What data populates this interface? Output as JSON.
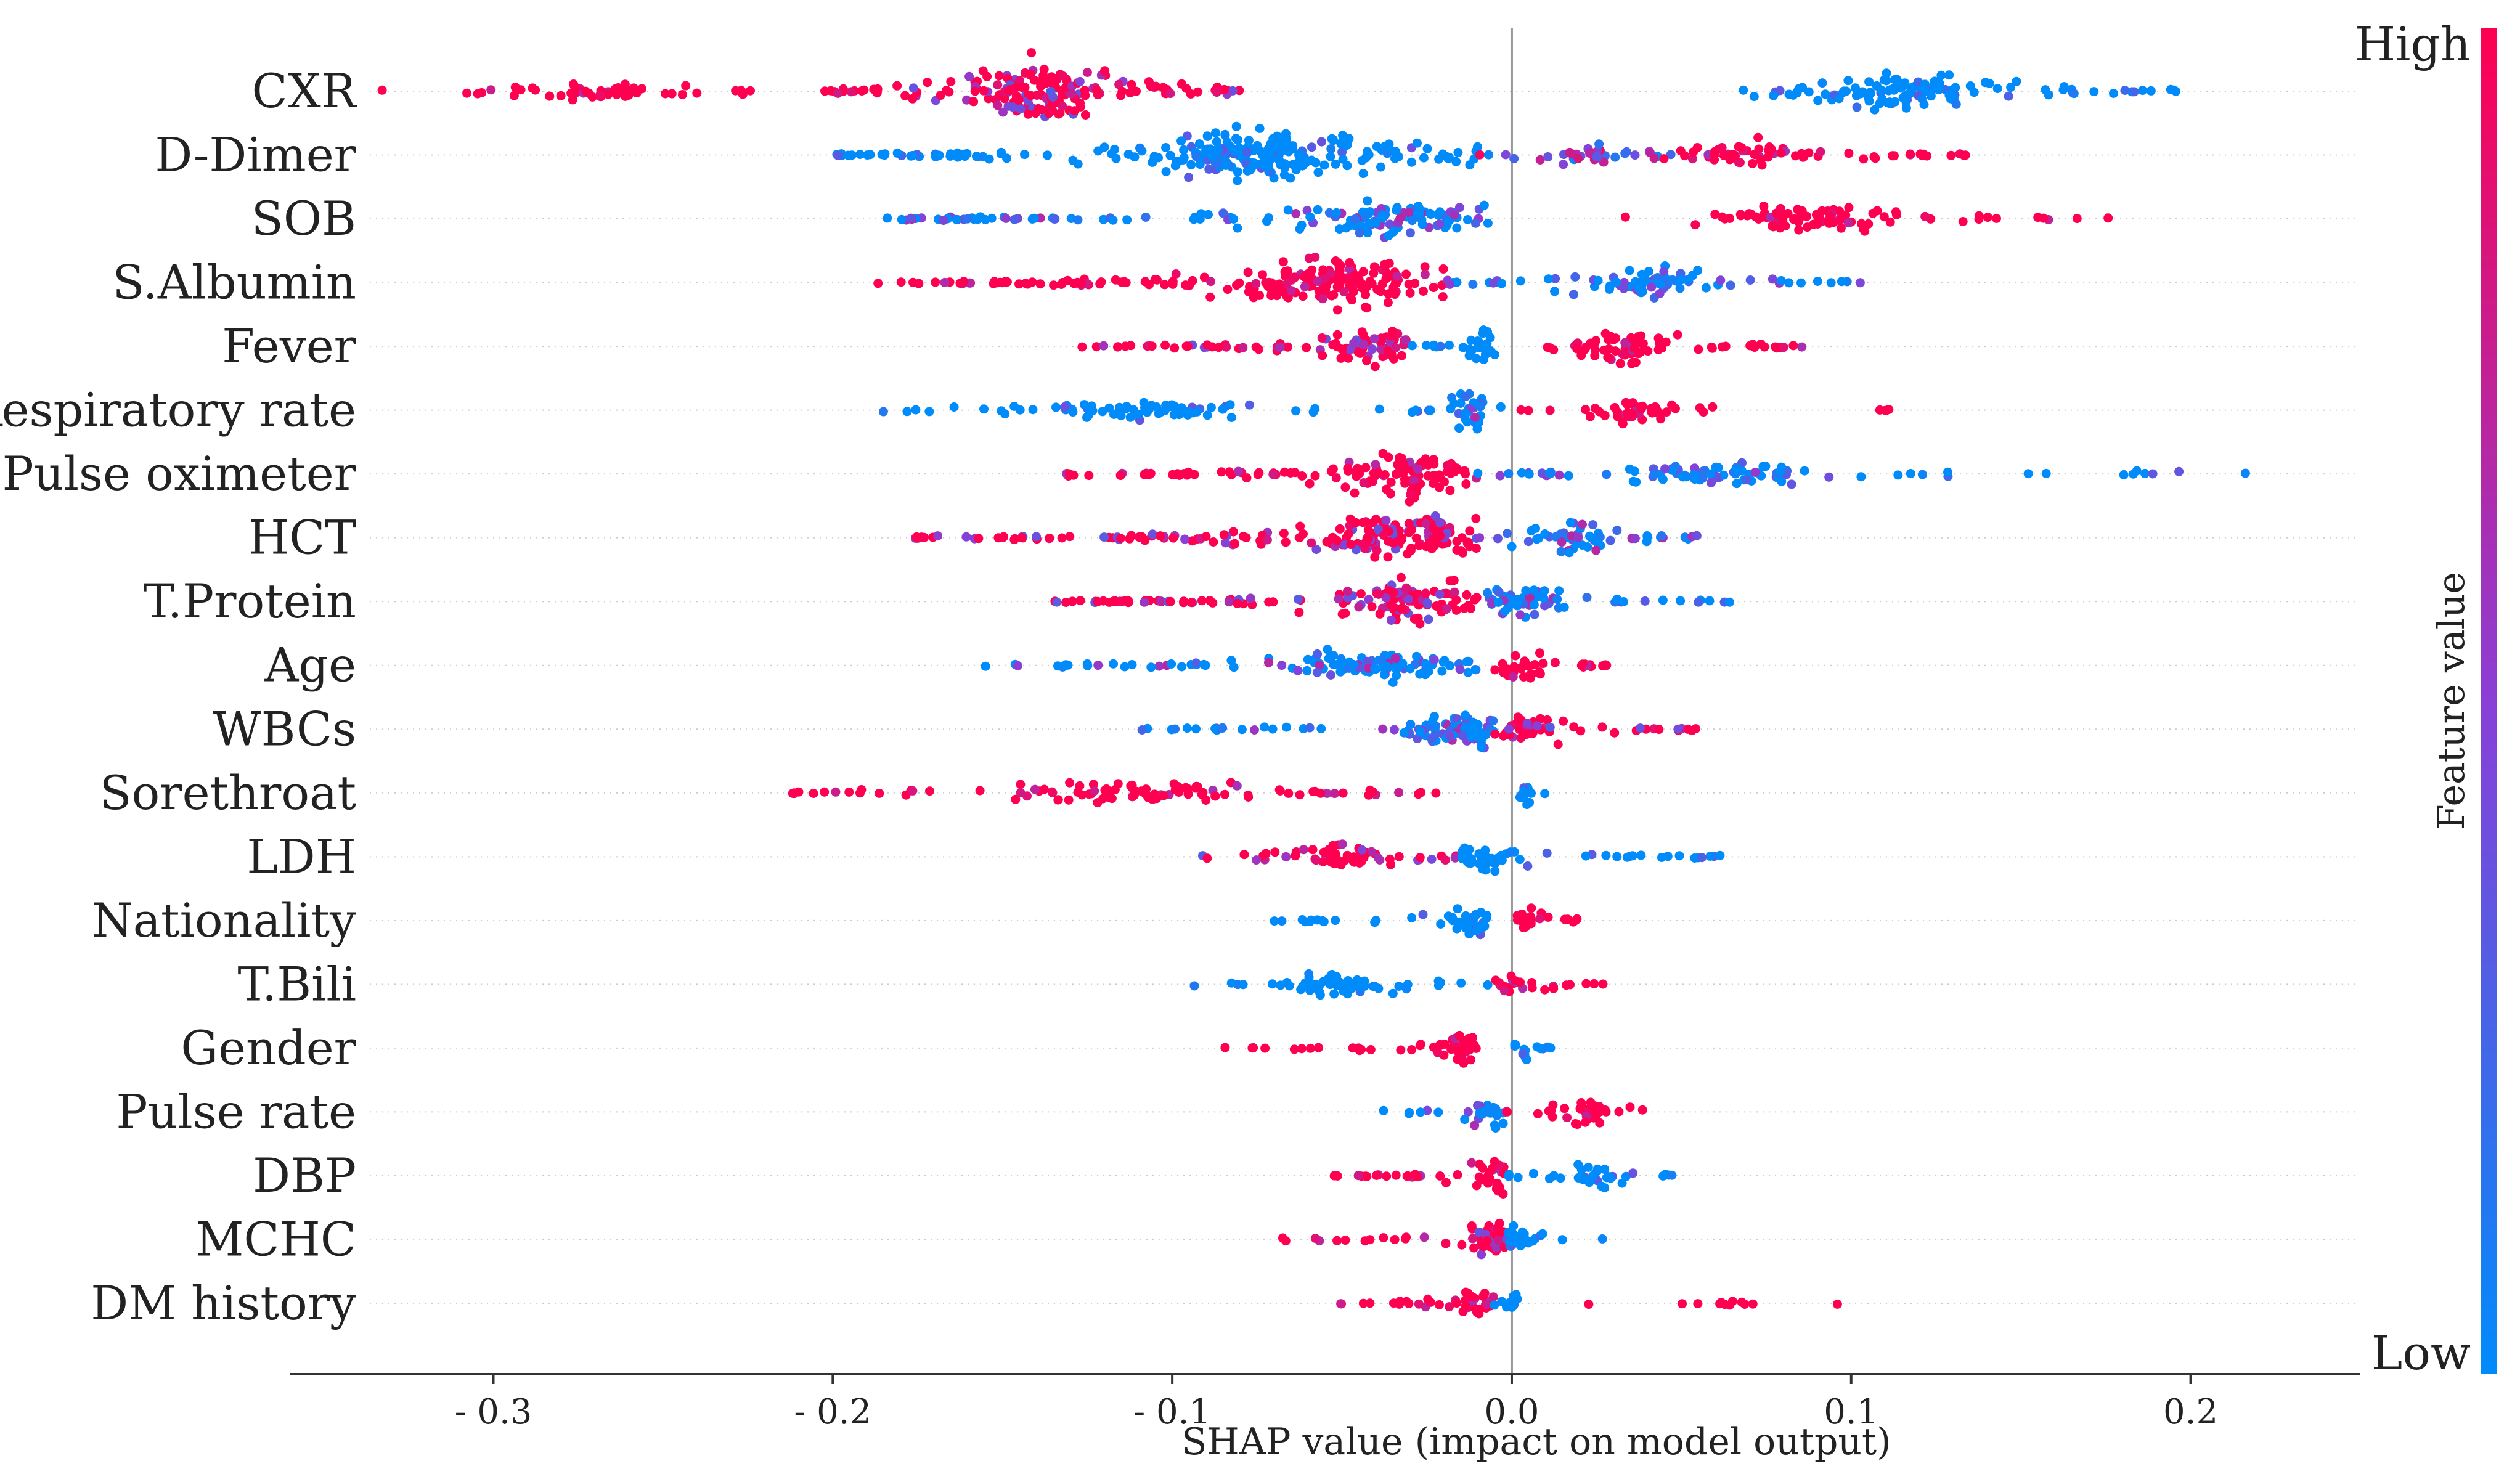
{
  "chart_data": {
    "type": "scatter",
    "subtype": "shap-beeswarm",
    "title": "",
    "xlabel": "SHAP value (impact on model output)",
    "ylabel": "",
    "xlim": [
      -0.36,
      0.25
    ],
    "xticks": [
      -0.3,
      -0.2,
      -0.1,
      0.0,
      0.1,
      0.2
    ],
    "xtick_labels": [
      "- 0.3",
      "- 0.2",
      "- 0.1",
      "0.0",
      "0.1",
      "0.2"
    ],
    "grid": false,
    "zero_line": true,
    "colorbar": {
      "label": "Feature value",
      "high_label": "High",
      "low_label": "Low",
      "high_color": "#ff0051",
      "mid_color": "#8a3fd6",
      "low_color": "#008bfb"
    },
    "features": [
      {
        "name": "CXR",
        "segments": [
          {
            "from": -0.335,
            "to": -0.2,
            "density": 0.25,
            "color": "high"
          },
          {
            "from": -0.2,
            "to": -0.08,
            "density": 1.0,
            "color": "high-mix",
            "peak": -0.14
          },
          {
            "from": 0.068,
            "to": 0.197,
            "density": 0.6,
            "color": "low",
            "peak": 0.115
          }
        ]
      },
      {
        "name": "D-Dimer",
        "segments": [
          {
            "from": -0.2,
            "to": -0.01,
            "density": 0.9,
            "color": "low",
            "peak": -0.072
          },
          {
            "from": -0.01,
            "to": 0.05,
            "density": 0.35,
            "color": "mix"
          },
          {
            "from": 0.04,
            "to": 0.138,
            "density": 0.45,
            "color": "high",
            "peak": 0.07
          }
        ]
      },
      {
        "name": "SOB",
        "segments": [
          {
            "from": -0.185,
            "to": -0.005,
            "density": 0.55,
            "color": "low-mix",
            "peak": -0.034
          },
          {
            "from": 0.03,
            "to": 0.178,
            "density": 0.4,
            "color": "high",
            "peak": 0.09
          }
        ]
      },
      {
        "name": "S.Albumin",
        "segments": [
          {
            "from": -0.187,
            "to": -0.02,
            "density": 0.8,
            "color": "high",
            "peak": -0.05
          },
          {
            "from": -0.02,
            "to": 0.103,
            "density": 0.45,
            "color": "mix-low"
          }
        ]
      },
      {
        "name": "Fever",
        "segments": [
          {
            "from": -0.128,
            "to": -0.03,
            "density": 0.6,
            "color": "high-mix",
            "peak": -0.04
          },
          {
            "from": -0.03,
            "to": 0.0,
            "density": 0.6,
            "color": "low",
            "peak": -0.008
          },
          {
            "from": 0.01,
            "to": 0.088,
            "density": 0.6,
            "color": "high",
            "peak": 0.035
          }
        ]
      },
      {
        "name": "Respiratory rate",
        "segments": [
          {
            "from": -0.193,
            "to": -0.03,
            "density": 0.3,
            "color": "low"
          },
          {
            "from": -0.03,
            "to": 0.0,
            "density": 0.7,
            "color": "low-mix",
            "peak": -0.012
          },
          {
            "from": 0.0,
            "to": 0.072,
            "density": 0.4,
            "color": "high"
          },
          {
            "from": 0.108,
            "to": 0.112,
            "density": 0.02,
            "color": "high"
          }
        ]
      },
      {
        "name": "Pulse oximeter",
        "segments": [
          {
            "from": -0.132,
            "to": -0.01,
            "density": 0.75,
            "color": "high",
            "peak": -0.03
          },
          {
            "from": -0.01,
            "to": 0.13,
            "density": 0.4,
            "color": "mix-low"
          },
          {
            "from": 0.15,
            "to": 0.22,
            "density": 0.05,
            "color": "low"
          }
        ]
      },
      {
        "name": "HCT",
        "segments": [
          {
            "from": -0.178,
            "to": -0.01,
            "density": 0.75,
            "color": "high-mix",
            "peak": -0.03
          },
          {
            "from": -0.01,
            "to": 0.057,
            "density": 0.55,
            "color": "low-mix",
            "peak": 0.02
          }
        ]
      },
      {
        "name": "T.Protein",
        "segments": [
          {
            "from": -0.135,
            "to": -0.01,
            "density": 0.75,
            "color": "high-mix",
            "peak": -0.028
          },
          {
            "from": -0.01,
            "to": 0.065,
            "density": 0.5,
            "color": "low-mix",
            "peak": 0.005
          }
        ]
      },
      {
        "name": "Age",
        "segments": [
          {
            "from": -0.157,
            "to": -0.005,
            "density": 0.5,
            "color": "low-mix",
            "peak": -0.04
          },
          {
            "from": -0.005,
            "to": 0.031,
            "density": 0.6,
            "color": "high",
            "peak": 0.003
          }
        ]
      },
      {
        "name": "WBCs",
        "segments": [
          {
            "from": -0.112,
            "to": -0.005,
            "density": 0.55,
            "color": "low-mix",
            "peak": -0.013
          },
          {
            "from": -0.005,
            "to": 0.055,
            "density": 0.5,
            "color": "high-mix",
            "peak": 0.005
          }
        ]
      },
      {
        "name": "Sorethroat",
        "segments": [
          {
            "from": -0.215,
            "to": -0.015,
            "density": 0.35,
            "color": "high"
          },
          {
            "from": 0.001,
            "to": 0.013,
            "density": 0.5,
            "color": "low",
            "peak": 0.004
          }
        ]
      },
      {
        "name": "LDH",
        "segments": [
          {
            "from": -0.093,
            "to": -0.005,
            "density": 0.45,
            "color": "high-mix"
          },
          {
            "from": -0.015,
            "to": 0.064,
            "density": 0.45,
            "color": "low",
            "peak": -0.008
          }
        ]
      },
      {
        "name": "Nationality",
        "segments": [
          {
            "from": -0.073,
            "to": -0.007,
            "density": 0.45,
            "color": "low",
            "peak": -0.01
          },
          {
            "from": 0.001,
            "to": 0.028,
            "density": 0.5,
            "color": "high",
            "peak": 0.005
          }
        ]
      },
      {
        "name": "T.Bili",
        "segments": [
          {
            "from": -0.098,
            "to": -0.005,
            "density": 0.4,
            "color": "low"
          },
          {
            "from": -0.005,
            "to": 0.03,
            "density": 0.45,
            "color": "high-mix",
            "peak": 0.0
          }
        ]
      },
      {
        "name": "Gender",
        "segments": [
          {
            "from": -0.085,
            "to": -0.01,
            "density": 0.45,
            "color": "high",
            "peak": -0.015
          },
          {
            "from": 0.0,
            "to": 0.014,
            "density": 0.5,
            "color": "low",
            "peak": 0.003
          }
        ]
      },
      {
        "name": "Pulse rate",
        "segments": [
          {
            "from": -0.039,
            "to": -0.002,
            "density": 0.5,
            "color": "low-mix",
            "peak": -0.006
          },
          {
            "from": -0.002,
            "to": 0.045,
            "density": 0.45,
            "color": "high"
          }
        ]
      },
      {
        "name": "DBP",
        "segments": [
          {
            "from": -0.053,
            "to": -0.002,
            "density": 0.55,
            "color": "high",
            "peak": -0.004
          },
          {
            "from": -0.002,
            "to": 0.052,
            "density": 0.4,
            "color": "low"
          }
        ]
      },
      {
        "name": "MCHC",
        "segments": [
          {
            "from": -0.072,
            "to": -0.002,
            "density": 0.55,
            "color": "high-mix",
            "peak": -0.004
          },
          {
            "from": -0.002,
            "to": 0.03,
            "density": 0.45,
            "color": "low",
            "peak": 0.002
          }
        ]
      },
      {
        "name": "DM history",
        "segments": [
          {
            "from": -0.051,
            "to": -0.005,
            "density": 0.5,
            "color": "high",
            "peak": -0.01
          },
          {
            "from": -0.006,
            "to": 0.005,
            "density": 0.5,
            "color": "low",
            "peak": 0.0
          },
          {
            "from": 0.01,
            "to": 0.118,
            "density": 0.05,
            "color": "high"
          }
        ]
      }
    ]
  }
}
